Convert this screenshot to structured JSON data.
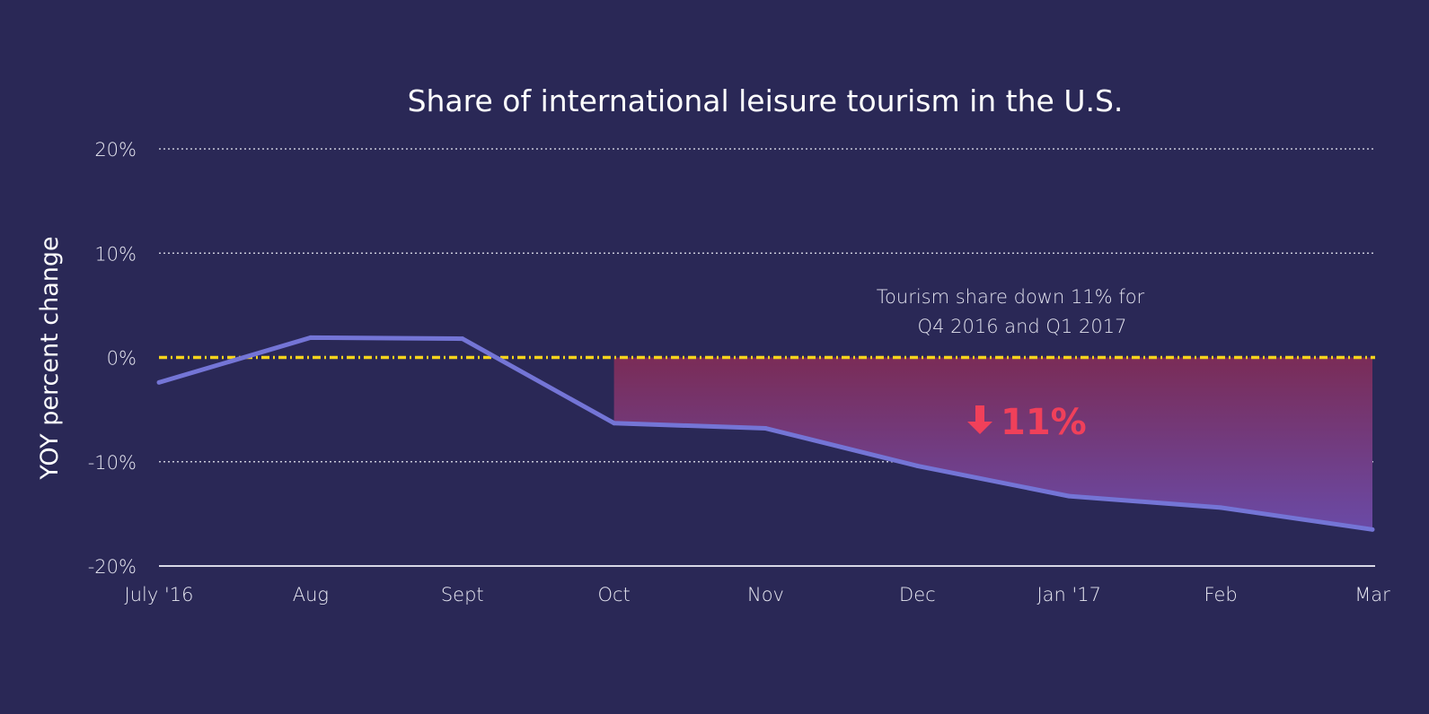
{
  "chart_data": {
    "type": "line",
    "title": "Share of international leisure tourism in the U.S.",
    "xlabel": "",
    "ylabel": "YOY percent change",
    "categories": [
      "July '16",
      "Aug",
      "Sept",
      "Oct",
      "Nov",
      "Dec",
      "Jan '17",
      "Feb",
      "Mar"
    ],
    "values": [
      -2.4,
      1.9,
      1.8,
      -6.3,
      -6.8,
      -10.4,
      -13.3,
      -14.4,
      -16.5
    ],
    "ylim": [
      -20,
      20
    ],
    "yticks": [
      20,
      10,
      0,
      -10,
      -20
    ],
    "ytick_labels": [
      "20%",
      "10%",
      "0%",
      "-10%",
      "-20%"
    ],
    "grid": true,
    "reference_line": {
      "value": 0,
      "style": "dash-dot",
      "color": "#f5d31c"
    },
    "shaded_region": {
      "from": "Oct",
      "to": "Mar",
      "colors": [
        "#7a2c57",
        "#6a4aa6"
      ]
    },
    "annotation": {
      "text_line1": "Tourism share down 11% for",
      "text_line2": "Q4 2016 and Q1 2017",
      "callout": "11%",
      "callout_icon": "arrow-down-icon",
      "callout_color": "#f0405a"
    },
    "colors": {
      "background": "#2a2856",
      "line": "#7475d6"
    }
  }
}
